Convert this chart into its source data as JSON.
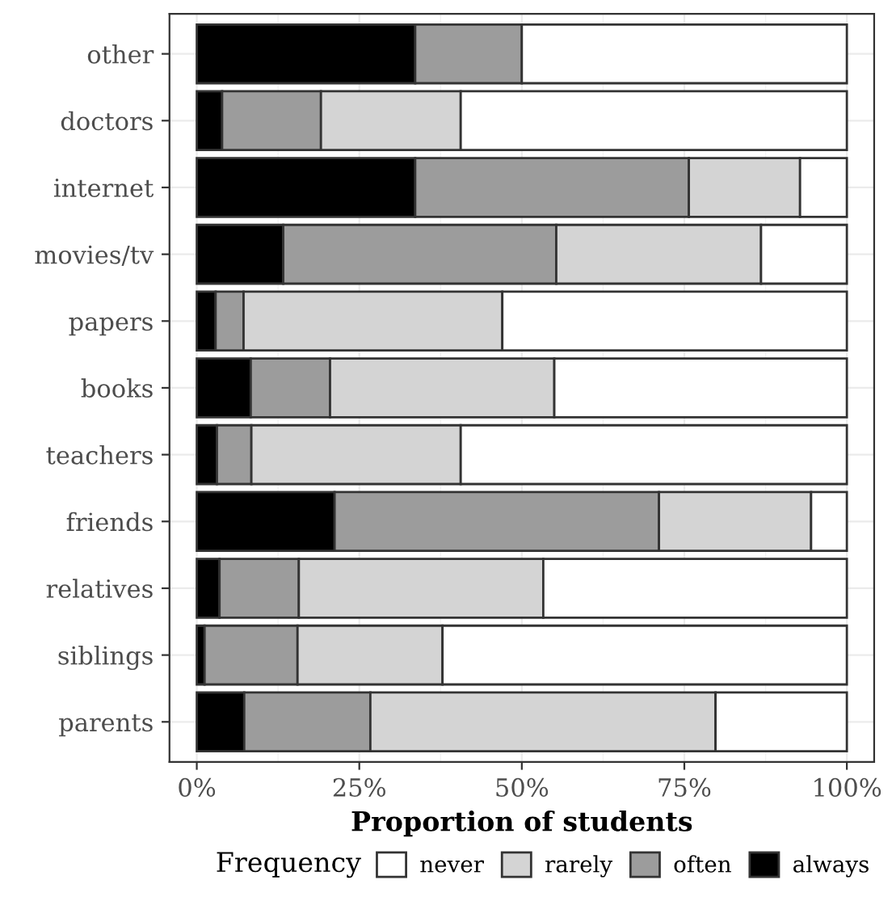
{
  "chart_data": {
    "type": "bar",
    "orientation": "horizontal",
    "stacked": true,
    "categories": [
      "other",
      "doctors",
      "internet",
      "movies/tv",
      "papers",
      "books",
      "teachers",
      "friends",
      "relatives",
      "siblings",
      "parents"
    ],
    "series": [
      {
        "name": "always",
        "color": "#000000",
        "values": [
          33.6,
          3.9,
          33.6,
          13.3,
          2.9,
          8.3,
          3.1,
          21.2,
          3.5,
          1.2,
          7.3
        ]
      },
      {
        "name": "often",
        "color": "#9c9c9c",
        "values": [
          16.4,
          15.2,
          42.1,
          42.0,
          4.3,
          12.2,
          5.3,
          49.9,
          12.2,
          14.3,
          19.4
        ]
      },
      {
        "name": "rarely",
        "color": "#d4d4d4",
        "values": [
          null,
          21.5,
          17.1,
          31.5,
          39.8,
          34.5,
          32.2,
          23.4,
          37.6,
          22.3,
          53.1
        ]
      },
      {
        "name": "never",
        "color": "#ffffff",
        "values": [
          50.0,
          59.4,
          7.2,
          13.2,
          53.0,
          45.0,
          59.4,
          5.5,
          46.7,
          62.2,
          20.2
        ]
      }
    ],
    "xlabel": "Proportion of students",
    "legend_title": "Frequency",
    "legend": "bottom",
    "xlim": [
      -4.2,
      104.2
    ],
    "xticks": [
      {
        "value": 0,
        "label": "0%"
      },
      {
        "value": 25,
        "label": "25%"
      },
      {
        "value": 50,
        "label": "50%"
      },
      {
        "value": 75,
        "label": "75%"
      },
      {
        "value": 100,
        "label": "100%"
      }
    ],
    "grid": true
  }
}
